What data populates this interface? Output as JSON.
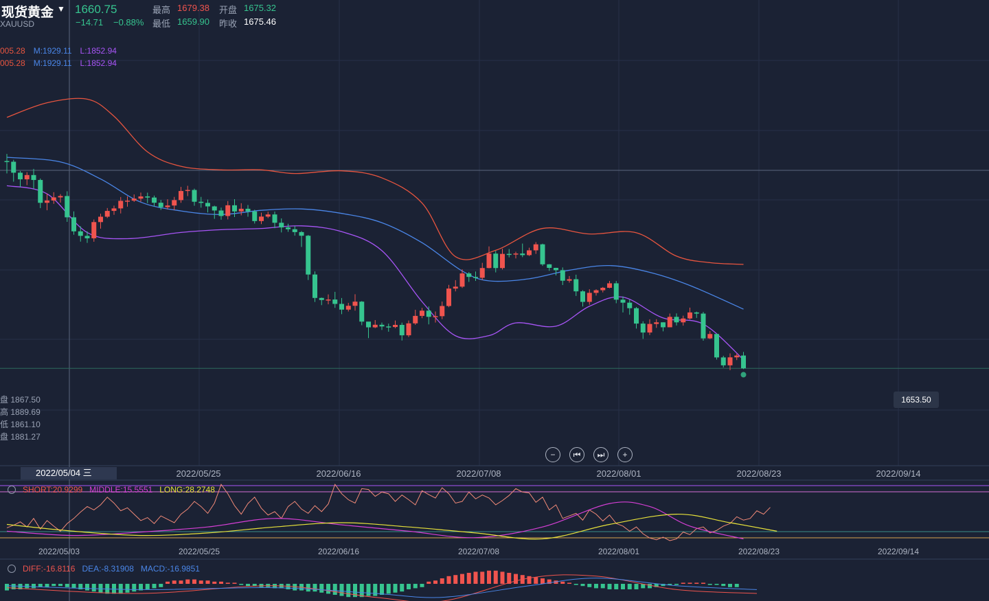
{
  "header": {
    "name": "现货黄金",
    "code": "XAUUSD",
    "last": "1660.75",
    "change": "−14.71",
    "change_pct": "−0.88%",
    "high_label": "最高",
    "high": "1679.38",
    "open_label": "开盘",
    "open": "1675.32",
    "low_label": "最低",
    "low": "1659.90",
    "prev_label": "昨收",
    "prev": "1675.46"
  },
  "boll_legend": [
    {
      "u": "005.28",
      "m": "M:1929.11",
      "l": "L:1852.94"
    },
    {
      "u": "005.28",
      "m": "M:1929.11",
      "l": "L:1852.94"
    }
  ],
  "ohlc_readout": [
    {
      "k": "盘",
      "v": "1867.50"
    },
    {
      "k": "高",
      "v": "1889.69"
    },
    {
      "k": "低",
      "v": "1861.10"
    },
    {
      "k": "盘",
      "v": "1881.27"
    }
  ],
  "price_tag": "1653.50",
  "cursor_date": "2022/05/04 三",
  "x_dates_main": [
    "2022/05/25",
    "2022/06/16",
    "2022/07/08",
    "2022/08/01",
    "2022/08/23",
    "2022/09/14"
  ],
  "x_dates_sub": [
    "2022/05/03",
    "2022/05/25",
    "2022/06/16",
    "2022/07/08",
    "2022/08/01",
    "2022/08/23",
    "2022/09/14"
  ],
  "ma_legend": {
    "short": "SHORT:20.9299",
    "middle": "MIDDLE:15.5551",
    "long": "LONG:28.2748"
  },
  "macd_legend": {
    "diff": "DIFF:-16.8116",
    "dea": "DEA:-8.31908",
    "macd": "MACD:-16.9851"
  },
  "nav_buttons": [
    "−",
    "⏮",
    "⏭",
    "+"
  ],
  "colors": {
    "up": "#f0544e",
    "down": "#36c48f",
    "upper": "#e8553f",
    "mid": "#4a86e8",
    "lower": "#a855f7"
  },
  "chart_data": {
    "type": "candlestick",
    "symbol": "XAUUSD",
    "x_start_date": "2022/04/28",
    "candles": [
      [
        1896.52,
        1895.73,
        1904.62,
        1882.41
      ],
      [
        1895.73,
        1883.25,
        1897.88,
        1873.03
      ],
      [
        1883.25,
        1875.72,
        1885.11,
        1866.75
      ],
      [
        1875.72,
        1880.59,
        1883.86,
        1869.08
      ],
      [
        1880.59,
        1874.98,
        1887.57,
        1864.84
      ],
      [
        1874.98,
        1849.01,
        1876.64,
        1842.98
      ],
      [
        1849.01,
        1851.64,
        1859.44,
        1840.53
      ],
      [
        1851.64,
        1855.18,
        1861.07,
        1847.83
      ],
      [
        1855.18,
        1856.71,
        1858.85,
        1849.25
      ],
      [
        1856.71,
        1832.51,
        1862.14,
        1827.34
      ],
      [
        1832.51,
        1816.57,
        1839.28,
        1812.65
      ],
      [
        1816.57,
        1811.43,
        1822.35,
        1804.84
      ],
      [
        1811.43,
        1808.65,
        1816.64,
        1803.46
      ],
      [
        1808.65,
        1827.1,
        1830.05,
        1804.71
      ],
      [
        1827.1,
        1833.2,
        1836.63,
        1819.63
      ],
      [
        1833.2,
        1839.8,
        1843.07,
        1831.7
      ],
      [
        1839.8,
        1842.66,
        1845.82,
        1835.32
      ],
      [
        1842.66,
        1851.24,
        1855.6,
        1836.91
      ],
      [
        1851.24,
        1851.44,
        1856.3,
        1844.66
      ],
      [
        1851.44,
        1853.77,
        1858.56,
        1850.06
      ],
      [
        1853.77,
        1856.27,
        1860.64,
        1850.22
      ],
      [
        1856.27,
        1855.0,
        1860.58,
        1848.66
      ],
      [
        1855.0,
        1849.08,
        1857.27,
        1844.95
      ],
      [
        1849.08,
        1844.03,
        1852.27,
        1840.91
      ],
      [
        1844.03,
        1845.93,
        1853.06,
        1841.46
      ],
      [
        1845.93,
        1852.07,
        1855.73,
        1840.7
      ],
      [
        1852.07,
        1862.43,
        1867.06,
        1849.02
      ],
      [
        1862.43,
        1863.62,
        1868.37,
        1856.65
      ],
      [
        1863.62,
        1850.22,
        1865.16,
        1845.7
      ],
      [
        1850.22,
        1848.9,
        1855.72,
        1843.46
      ],
      [
        1848.9,
        1844.92,
        1852.77,
        1837.99
      ],
      [
        1844.92,
        1840.26,
        1845.74,
        1830.79
      ],
      [
        1840.26,
        1834.01,
        1843.52,
        1829.75
      ],
      [
        1834.01,
        1846.21,
        1850.97,
        1830.12
      ],
      [
        1846.21,
        1839.2,
        1853.13,
        1832.86
      ],
      [
        1839.2,
        1842.24,
        1848.53,
        1834.76
      ],
      [
        1842.24,
        1839.22,
        1846.53,
        1833.22
      ],
      [
        1839.22,
        1828.24,
        1841.11,
        1825.46
      ],
      [
        1828.24,
        1833.32,
        1837.77,
        1824.78
      ],
      [
        1833.32,
        1835.76,
        1838.88,
        1831.58
      ],
      [
        1835.76,
        1826.31,
        1839.04,
        1820.26
      ],
      [
        1826.31,
        1821.0,
        1831.25,
        1815.33
      ],
      [
        1821.0,
        1818.96,
        1825.19,
        1816.06
      ],
      [
        1818.96,
        1815.69,
        1822.64,
        1811.67
      ],
      [
        1815.69,
        1811.55,
        1816.94,
        1798.8
      ],
      [
        1811.55,
        1767.44,
        1812.43,
        1761.22
      ],
      [
        1767.44,
        1740.8,
        1771.0,
        1736.23
      ],
      [
        1740.8,
        1738.46,
        1741.23,
        1732.61
      ],
      [
        1738.46,
        1739.01,
        1744.86,
        1733.57
      ],
      [
        1739.01,
        1734.02,
        1747.75,
        1729.54
      ],
      [
        1734.02,
        1727.53,
        1740.76,
        1722.37
      ],
      [
        1727.53,
        1731.86,
        1735.21,
        1725.4
      ],
      [
        1731.86,
        1736.58,
        1744.98,
        1726.38
      ],
      [
        1736.58,
        1713.89,
        1737.25,
        1709.8
      ],
      [
        1713.89,
        1707.37,
        1713.61,
        1695.1
      ],
      [
        1707.37,
        1710.3,
        1715.63,
        1706.45
      ],
      [
        1710.3,
        1708.37,
        1712.83,
        1704.35
      ],
      [
        1708.37,
        1707.73,
        1711.63,
        1702.39
      ],
      [
        1707.73,
        1710.15,
        1715.16,
        1706.36
      ],
      [
        1710.15,
        1698.31,
        1712.73,
        1692.37
      ],
      [
        1698.31,
        1711.89,
        1715.17,
        1696.29
      ],
      [
        1711.89,
        1720.38,
        1727.34,
        1710.2
      ],
      [
        1720.38,
        1726.34,
        1729.51,
        1717.76
      ],
      [
        1726.34,
        1719.31,
        1731.16,
        1710.75
      ],
      [
        1719.31,
        1720.06,
        1725.37,
        1712.81
      ],
      [
        1720.06,
        1731.63,
        1736.71,
        1716.68
      ],
      [
        1731.63,
        1751.46,
        1755.71,
        1730.3
      ],
      [
        1751.46,
        1753.66,
        1761.04,
        1748.27
      ],
      [
        1753.66,
        1768.68,
        1773.33,
        1752.14
      ],
      [
        1768.68,
        1764.73,
        1770.26,
        1759.07
      ],
      [
        1764.73,
        1763.73,
        1770.86,
        1760.11
      ],
      [
        1763.73,
        1774.8,
        1780.74,
        1761.37
      ],
      [
        1774.8,
        1791.24,
        1799.43,
        1774.44
      ],
      [
        1791.24,
        1774.78,
        1794.35,
        1769.86
      ],
      [
        1774.78,
        1790.9,
        1796.79,
        1773.19
      ],
      [
        1790.9,
        1790.78,
        1796.4,
        1786.96
      ],
      [
        1790.78,
        1791.32,
        1793.36,
        1785.7
      ],
      [
        1791.32,
        1789.51,
        1802.67,
        1787.23
      ],
      [
        1789.51,
        1794.94,
        1797.94,
        1788.48
      ],
      [
        1794.94,
        1801.8,
        1804.31,
        1790.92
      ],
      [
        1801.8,
        1779.05,
        1802.52,
        1777.27
      ],
      [
        1779.05,
        1774.99,
        1779.37,
        1771.65
      ],
      [
        1774.99,
        1772.33,
        1775.13,
        1766.43
      ],
      [
        1772.33,
        1760.4,
        1775.48,
        1755.49
      ],
      [
        1760.4,
        1762.12,
        1765.68,
        1758.21
      ],
      [
        1762.12,
        1748.31,
        1767.26,
        1743.06
      ],
      [
        1748.31,
        1736.33,
        1749.59,
        1731.06
      ],
      [
        1736.33,
        1746.59,
        1750.71,
        1733.07
      ],
      [
        1746.59,
        1749.56,
        1750.64,
        1743.5
      ],
      [
        1749.56,
        1752.34,
        1753.29,
        1747.09
      ],
      [
        1752.34,
        1757.45,
        1760.12,
        1751.81
      ],
      [
        1757.45,
        1738.82,
        1760.09,
        1734.77
      ],
      [
        1738.82,
        1735.42,
        1742.59,
        1724.29
      ],
      [
        1735.42,
        1729.14,
        1738.82,
        1721.71
      ],
      [
        1729.14,
        1711.64,
        1730.42,
        1705.93
      ],
      [
        1711.64,
        1701.48,
        1714.26,
        1694.25
      ],
      [
        1701.48,
        1711.21,
        1716.52,
        1698.64
      ],
      [
        1711.21,
        1713.08,
        1716.6,
        1706.8
      ],
      [
        1713.08,
        1707.44,
        1713.16,
        1702.79
      ],
      [
        1707.44,
        1719.28,
        1723.06,
        1708.08
      ],
      [
        1719.28,
        1713.05,
        1723.24,
        1709.46
      ],
      [
        1713.05,
        1717.46,
        1720.66,
        1709.33
      ],
      [
        1717.46,
        1724.32,
        1729.74,
        1716.29
      ],
      [
        1724.32,
        1723.0,
        1725.24,
        1718.07
      ],
      [
        1723.0,
        1694.78,
        1724.93,
        1692.21
      ],
      [
        1694.78,
        1699.78,
        1703.1,
        1694.08
      ],
      [
        1699.78,
        1673.14,
        1699.95,
        1670.72
      ],
      [
        1673.14,
        1664.16,
        1675.04,
        1661.72
      ],
      [
        1664.16,
        1673.23,
        1677.7,
        1658.62
      ],
      [
        1673.23,
        1675.32,
        1677.49,
        1670.13
      ],
      [
        1675.32,
        1660.75,
        1679.38,
        1659.9
      ]
    ],
    "boll_upper": [
      [
        0,
        1946.23
      ],
      [
        6,
        1962.8
      ],
      [
        12,
        1966.89
      ],
      [
        16,
        1947.5
      ],
      [
        21,
        1906.91
      ],
      [
        26,
        1890.53
      ],
      [
        32,
        1886.47
      ],
      [
        38,
        1886.49
      ],
      [
        43,
        1882.3
      ],
      [
        50,
        1885.41
      ],
      [
        56,
        1877.4
      ],
      [
        62,
        1848.8
      ],
      [
        67,
        1787.71
      ],
      [
        73,
        1794.98
      ],
      [
        80,
        1819.88
      ],
      [
        87,
        1813.56
      ],
      [
        94,
        1814.96
      ],
      [
        100,
        1788.37
      ],
      [
        105,
        1780.95
      ],
      [
        110,
        1778.96
      ]
    ],
    "boll_mid": [
      [
        0,
        1900.76
      ],
      [
        8,
        1895.52
      ],
      [
        14,
        1876.09
      ],
      [
        20,
        1849.75
      ],
      [
        26,
        1839.77
      ],
      [
        32,
        1835.69
      ],
      [
        38,
        1840.47
      ],
      [
        44,
        1842.06
      ],
      [
        50,
        1836.96
      ],
      [
        56,
        1826.4
      ],
      [
        62,
        1803.62
      ],
      [
        68,
        1771.44
      ],
      [
        72,
        1760.23
      ],
      [
        78,
        1762.58
      ],
      [
        84,
        1772.32
      ],
      [
        90,
        1777.62
      ],
      [
        96,
        1769.95
      ],
      [
        102,
        1755.01
      ],
      [
        110,
        1728.04
      ]
    ],
    "boll_lower": [
      [
        0,
        1868.42
      ],
      [
        6,
        1859.21
      ],
      [
        12,
        1815.2
      ],
      [
        18,
        1808.23
      ],
      [
        26,
        1815.31
      ],
      [
        32,
        1818.45
      ],
      [
        38,
        1819.81
      ],
      [
        44,
        1822.79
      ],
      [
        50,
        1816.18
      ],
      [
        56,
        1794.65
      ],
      [
        62,
        1736.53
      ],
      [
        67,
        1697.75
      ],
      [
        72,
        1697.93
      ],
      [
        76,
        1712.42
      ],
      [
        82,
        1708.67
      ],
      [
        87,
        1731.33
      ],
      [
        92,
        1741.67
      ],
      [
        98,
        1718.06
      ],
      [
        104,
        1711.08
      ],
      [
        110,
        1670.59
      ]
    ],
    "ma_short_trace": [
      38,
      44,
      52,
      40,
      60,
      35,
      55,
      42,
      30,
      48,
      60,
      75,
      88,
      80,
      92,
      110,
      96,
      78,
      85,
      70,
      55,
      62,
      48,
      66,
      58,
      50,
      70,
      82,
      100,
      88,
      72,
      96,
      140,
      118,
      90,
      70,
      95,
      110,
      84,
      68,
      76,
      60,
      88,
      100,
      82,
      72,
      90,
      76,
      94,
      140,
      118,
      104,
      96,
      130,
      128,
      112,
      122,
      118,
      100,
      115,
      104,
      92,
      125,
      116,
      108,
      132,
      118,
      96,
      100,
      122,
      106,
      115,
      108,
      92,
      102,
      114,
      130,
      122,
      120,
      98,
      110,
      80,
      92,
      60,
      66,
      72,
      56,
      80,
      70,
      54,
      68,
      48,
      42,
      30,
      40,
      24,
      14,
      10,
      16,
      8,
      12,
      28,
      22,
      36,
      40,
      26,
      32,
      42,
      48,
      64,
      56,
      60,
      78,
      70,
      86
    ],
    "macd_hist": [
      -6,
      -5,
      -5,
      -4,
      -4,
      -3,
      -3,
      -2,
      -2,
      -3,
      -4,
      -5,
      -6,
      -7,
      -8,
      -9,
      -9,
      -9,
      -8,
      -7,
      -6,
      -5,
      -4,
      -3,
      2,
      3,
      3,
      4,
      4,
      3,
      3,
      2,
      2,
      1,
      1,
      -1,
      -2,
      -2,
      -3,
      -3,
      -4,
      -4,
      -5,
      -6,
      -6,
      -7,
      -7,
      -8,
      -9,
      -10,
      -11,
      -12,
      -12,
      -12,
      -11,
      -11,
      -10,
      -9,
      -8,
      -7,
      -5,
      -4,
      -3,
      2,
      3,
      5,
      7,
      8,
      9,
      10,
      11,
      11,
      12,
      12,
      11,
      10,
      9,
      8,
      7,
      6,
      5,
      4,
      3,
      2,
      1,
      -1,
      -2,
      -3,
      -4,
      -4,
      -5,
      -5,
      -5,
      -5,
      -5,
      -4,
      -4,
      -3,
      -2,
      -1,
      -1,
      1,
      1,
      1,
      1,
      -1,
      -1,
      -2,
      -3,
      -3
    ]
  }
}
